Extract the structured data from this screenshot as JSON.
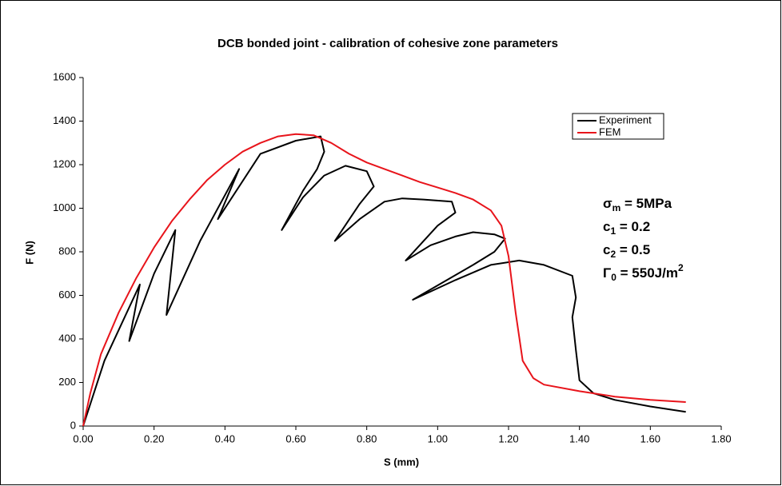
{
  "chart_data": {
    "type": "line",
    "title": "DCB bonded joint - calibration of cohesive zone parameters",
    "x_label": "S (mm)",
    "y_label": "F (N)",
    "xlim": [
      0,
      1.8
    ],
    "ylim": [
      0,
      1600
    ],
    "xticks": [
      {
        "value": 0,
        "label": "0.00"
      },
      {
        "value": 0.2,
        "label": "0.20"
      },
      {
        "value": 0.4,
        "label": "0.40"
      },
      {
        "value": 0.6,
        "label": "0.60"
      },
      {
        "value": 0.8,
        "label": "0.80"
      },
      {
        "value": 1.0,
        "label": "1.00"
      },
      {
        "value": 1.2,
        "label": "1.20"
      },
      {
        "value": 1.4,
        "label": "1.40"
      },
      {
        "value": 1.6,
        "label": "1.60"
      },
      {
        "value": 1.8,
        "label": "1.80"
      }
    ],
    "yticks": [
      0,
      200,
      400,
      600,
      800,
      1000,
      1200,
      1400,
      1600
    ],
    "grid": false,
    "legend": "upper right",
    "annotations": [
      [
        {
          "text": "σ"
        },
        {
          "text": "m",
          "shift": "sub"
        },
        {
          "text": " = 5MPa"
        }
      ],
      [
        {
          "text": "c"
        },
        {
          "text": "1",
          "shift": "sub"
        },
        {
          "text": " = 0.2"
        }
      ],
      [
        {
          "text": "c"
        },
        {
          "text": "2",
          "shift": "sub"
        },
        {
          "text": " = 0.5"
        }
      ],
      [
        {
          "text": "Γ"
        },
        {
          "text": "0",
          "shift": "sub"
        },
        {
          "text": " = 550J/m"
        },
        {
          "text": "2",
          "shift": "super"
        }
      ]
    ],
    "series": [
      {
        "name": "Experiment",
        "color": "#000000",
        "x": [
          0,
          0.06,
          0.16,
          0.13,
          0.2,
          0.26,
          0.235,
          0.33,
          0.44,
          0.38,
          0.5,
          0.6,
          0.67,
          0.68,
          0.66,
          0.62,
          0.56,
          0.62,
          0.68,
          0.74,
          0.8,
          0.82,
          0.78,
          0.71,
          0.78,
          0.85,
          0.9,
          0.96,
          1.04,
          1.05,
          1.0,
          0.91,
          0.98,
          1.05,
          1.1,
          1.16,
          1.19,
          1.16,
          1.1,
          0.93,
          1.05,
          1.15,
          1.23,
          1.3,
          1.38,
          1.39,
          1.38,
          1.39,
          1.4,
          1.44,
          1.5,
          1.6,
          1.7
        ],
        "values": [
          0,
          300,
          650,
          390,
          700,
          900,
          510,
          850,
          1180,
          950,
          1250,
          1310,
          1330,
          1260,
          1180,
          1080,
          900,
          1050,
          1150,
          1195,
          1170,
          1100,
          1020,
          850,
          950,
          1030,
          1045,
          1040,
          1030,
          980,
          920,
          760,
          830,
          870,
          890,
          880,
          860,
          800,
          740,
          580,
          670,
          740,
          760,
          740,
          690,
          590,
          500,
          350,
          210,
          150,
          120,
          90,
          65
        ]
      },
      {
        "name": "FEM",
        "color": "#e8141b",
        "x": [
          0,
          0.02,
          0.05,
          0.1,
          0.15,
          0.2,
          0.25,
          0.3,
          0.35,
          0.4,
          0.45,
          0.5,
          0.55,
          0.6,
          0.65,
          0.7,
          0.75,
          0.8,
          0.85,
          0.9,
          0.95,
          1.0,
          1.05,
          1.1,
          1.15,
          1.18,
          1.2,
          1.22,
          1.24,
          1.27,
          1.3,
          1.4,
          1.5,
          1.6,
          1.7
        ],
        "values": [
          0,
          150,
          330,
          520,
          680,
          820,
          940,
          1040,
          1130,
          1200,
          1260,
          1300,
          1330,
          1340,
          1335,
          1300,
          1250,
          1210,
          1180,
          1150,
          1120,
          1095,
          1070,
          1040,
          990,
          920,
          780,
          520,
          300,
          220,
          190,
          160,
          135,
          120,
          110
        ]
      }
    ]
  }
}
